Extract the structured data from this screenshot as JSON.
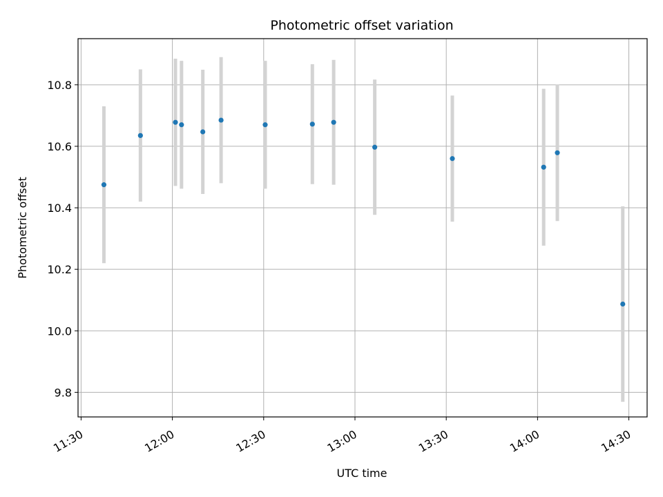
{
  "chart_data": {
    "type": "scatter",
    "title": "Photometric offset variation",
    "xlabel": "UTC time",
    "ylabel": "Photometric offset",
    "grid": true,
    "legend": "none",
    "xlim": [
      "11:29",
      "14:36"
    ],
    "ylim": [
      9.72,
      10.95
    ],
    "x_ticks": [
      "11:30",
      "12:00",
      "12:30",
      "13:00",
      "13:30",
      "14:00",
      "14:30"
    ],
    "y_ticks": [
      "9.8",
      "10.0",
      "10.2",
      "10.4",
      "10.6",
      "10.8"
    ],
    "colors": {
      "point": "#1f77b4",
      "errorbar": "#d3d3d3",
      "grid": "#b0b0b0"
    },
    "points": [
      {
        "x": "11:37.5",
        "y": 10.475,
        "yerr": 0.255
      },
      {
        "x": "11:49.5",
        "y": 10.635,
        "yerr": 0.215
      },
      {
        "x": "12:01",
        "y": 10.678,
        "yerr": 0.207
      },
      {
        "x": "12:03",
        "y": 10.67,
        "yerr": 0.208
      },
      {
        "x": "12:10",
        "y": 10.647,
        "yerr": 0.202
      },
      {
        "x": "12:16",
        "y": 10.685,
        "yerr": 0.205
      },
      {
        "x": "12:30.5",
        "y": 10.67,
        "yerr": 0.208
      },
      {
        "x": "12:46",
        "y": 10.672,
        "yerr": 0.195
      },
      {
        "x": "12:53",
        "y": 10.678,
        "yerr": 0.203
      },
      {
        "x": "13:06.5",
        "y": 10.597,
        "yerr": 0.22
      },
      {
        "x": "13:32",
        "y": 10.56,
        "yerr": 0.205
      },
      {
        "x": "14:02",
        "y": 10.532,
        "yerr": 0.255
      },
      {
        "x": "14:06.5",
        "y": 10.579,
        "yerr": 0.222
      },
      {
        "x": "14:28",
        "y": 10.087,
        "yerr": 0.318
      }
    ]
  }
}
